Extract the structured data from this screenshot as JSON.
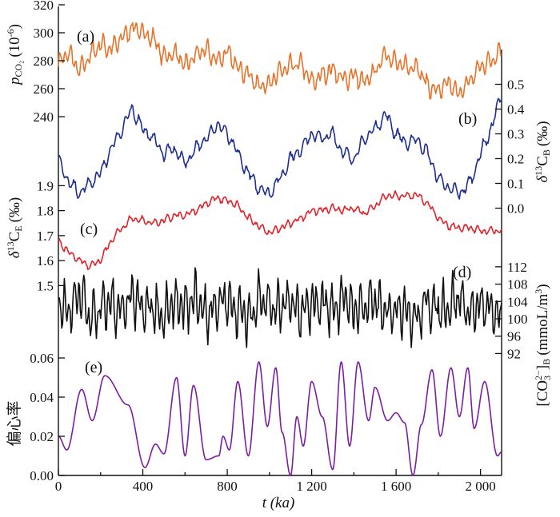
{
  "chart_data": {
    "type": "line",
    "x_axis": {
      "label": "t (ka)",
      "range": [
        0,
        2100
      ],
      "ticks": [
        0,
        400,
        800,
        1200,
        1600,
        2000
      ],
      "tick_labels": [
        "0",
        "400",
        "800",
        "1 200",
        "1 600",
        "2 000"
      ]
    },
    "panels": [
      {
        "label": "(a)",
        "axis_side": "left",
        "ylabel": "pCO2 (10^-6)",
        "ylabel_main": "p",
        "ylabel_sub": "CO₂",
        "ylabel_rest": "(10",
        "ylabel_sup": "-6",
        "ylabel_close": ")",
        "ylim": [
          232,
          320
        ],
        "ticks": [
          240,
          260,
          280,
          300,
          320
        ],
        "color": "#E8732A",
        "x": [
          0,
          50,
          100,
          150,
          200,
          250,
          300,
          350,
          400,
          450,
          500,
          550,
          600,
          650,
          700,
          750,
          800,
          850,
          900,
          950,
          1000,
          1050,
          1100,
          1150,
          1200,
          1250,
          1300,
          1350,
          1400,
          1450,
          1500,
          1550,
          1600,
          1650,
          1700,
          1750,
          1800,
          1850,
          1900,
          1950,
          2000,
          2050,
          2100
        ],
        "y": [
          278,
          286,
          272,
          284,
          292,
          288,
          296,
          304,
          300,
          296,
          282,
          286,
          276,
          284,
          288,
          280,
          286,
          276,
          270,
          262,
          264,
          272,
          276,
          278,
          264,
          270,
          274,
          266,
          270,
          264,
          272,
          286,
          278,
          276,
          276,
          262,
          258,
          264,
          256,
          266,
          276,
          280,
          288
        ]
      },
      {
        "label": "(b)",
        "axis_side": "right",
        "ylabel": "δ13CB (‰)",
        "ylabel_delta": "δ",
        "ylabel_sup": "13",
        "ylabel_main": "C",
        "ylabel_sub": "B",
        "ylabel_unit": "(‰)",
        "ylim": [
          -0.05,
          0.55
        ],
        "ticks": [
          0.0,
          0.1,
          0.2,
          0.3,
          0.4,
          0.5
        ],
        "tick_labels": [
          "0.0",
          "0.1",
          "0.2",
          "0.3",
          "0.4",
          "0.5"
        ],
        "color": "#1E2F8F",
        "x": [
          0,
          50,
          100,
          150,
          200,
          250,
          300,
          350,
          400,
          450,
          500,
          550,
          600,
          650,
          700,
          750,
          800,
          850,
          900,
          950,
          1000,
          1050,
          1100,
          1150,
          1200,
          1250,
          1300,
          1350,
          1400,
          1450,
          1500,
          1550,
          1600,
          1650,
          1700,
          1750,
          1800,
          1850,
          1900,
          1950,
          2000,
          2050,
          2100
        ],
        "y": [
          0.2,
          0.1,
          0.06,
          0.1,
          0.14,
          0.24,
          0.32,
          0.4,
          0.32,
          0.28,
          0.22,
          0.24,
          0.18,
          0.24,
          0.28,
          0.34,
          0.3,
          0.22,
          0.14,
          0.08,
          0.06,
          0.12,
          0.2,
          0.24,
          0.3,
          0.28,
          0.3,
          0.22,
          0.2,
          0.28,
          0.32,
          0.38,
          0.3,
          0.26,
          0.28,
          0.22,
          0.12,
          0.08,
          0.06,
          0.1,
          0.22,
          0.32,
          0.46
        ]
      },
      {
        "label": "(c)",
        "axis_side": "left",
        "ylabel": "δ13CE (‰)",
        "ylabel_delta": "δ",
        "ylabel_sup": "13",
        "ylabel_main": "C",
        "ylabel_sub": "E",
        "ylabel_unit": "(‰)",
        "ylim": [
          1.45,
          1.93
        ],
        "ticks": [
          1.5,
          1.6,
          1.7,
          1.8,
          1.9
        ],
        "tick_labels": [
          "1.5",
          "1.6",
          "1.7",
          "1.8",
          "1.9"
        ],
        "color": "#E0242B",
        "x": [
          0,
          50,
          100,
          150,
          200,
          250,
          300,
          350,
          400,
          450,
          500,
          550,
          600,
          650,
          700,
          750,
          800,
          850,
          900,
          950,
          1000,
          1050,
          1100,
          1150,
          1200,
          1250,
          1300,
          1350,
          1400,
          1450,
          1500,
          1550,
          1600,
          1650,
          1700,
          1750,
          1800,
          1850,
          1900,
          1950,
          2000,
          2050,
          2100
        ],
        "y": [
          1.68,
          1.63,
          1.6,
          1.58,
          1.6,
          1.68,
          1.73,
          1.77,
          1.76,
          1.75,
          1.76,
          1.78,
          1.78,
          1.8,
          1.83,
          1.85,
          1.84,
          1.82,
          1.77,
          1.74,
          1.71,
          1.73,
          1.75,
          1.77,
          1.8,
          1.8,
          1.81,
          1.8,
          1.81,
          1.79,
          1.82,
          1.86,
          1.86,
          1.86,
          1.86,
          1.83,
          1.77,
          1.74,
          1.73,
          1.73,
          1.72,
          1.72,
          1.72
        ]
      },
      {
        "label": "(d)",
        "axis_side": "right",
        "ylabel": "[CO3 2-]B (mmoL/m3)",
        "ylabel_open": "[CO",
        "ylabel_co_sub": "3",
        "ylabel_co_sup": "2−",
        "ylabel_close": "]",
        "ylabel_sub": "B",
        "ylabel_unit": "(mmoL/m",
        "ylabel_unit_sup": "3",
        "ylabel_unit_close": ")",
        "ylim": [
          86,
          114
        ],
        "ticks": [
          92,
          96,
          100,
          104,
          108,
          112
        ],
        "color": "#111111",
        "x": [
          0,
          50,
          100,
          150,
          200,
          250,
          300,
          350,
          400,
          450,
          500,
          550,
          600,
          650,
          700,
          750,
          800,
          850,
          900,
          950,
          1000,
          1050,
          1100,
          1150,
          1200,
          1250,
          1300,
          1350,
          1400,
          1450,
          1500,
          1550,
          1600,
          1650,
          1700,
          1750,
          1800,
          1850,
          1900,
          1950,
          2000,
          2050,
          2100
        ],
        "y": [
          104,
          101,
          106,
          100,
          102,
          104,
          101,
          105,
          102,
          103,
          100,
          104,
          102,
          105,
          101,
          103,
          104,
          102,
          100,
          105,
          103,
          102,
          104,
          101,
          103,
          104,
          102,
          105,
          102,
          103,
          104,
          101,
          103,
          102,
          100,
          104,
          102,
          103,
          105,
          101,
          103,
          102,
          100
        ]
      },
      {
        "label": "(e)",
        "axis_side": "left",
        "ylabel": "偏心率",
        "ylim": [
          0.0,
          0.06
        ],
        "ticks": [
          0.0,
          0.02,
          0.04,
          0.06
        ],
        "tick_labels": [
          "0.00",
          "0.02",
          "0.04",
          "0.06"
        ],
        "color": "#7B1FA2",
        "peaks_x": [
          0,
          40,
          110,
          160,
          220,
          330,
          410,
          460,
          500,
          560,
          600,
          640,
          700,
          760,
          780,
          810,
          850,
          900,
          950,
          990,
          1030,
          1060,
          1100,
          1130,
          1160,
          1200,
          1250,
          1300,
          1340,
          1380,
          1420,
          1470,
          1500,
          1560,
          1600,
          1640,
          1680,
          1720,
          1770,
          1810,
          1860,
          1900,
          1940,
          1970,
          2020,
          2080,
          2100
        ],
        "peaks_y": [
          0.02,
          0.013,
          0.044,
          0.028,
          0.051,
          0.036,
          0.004,
          0.016,
          0.011,
          0.05,
          0.01,
          0.046,
          0.008,
          0.01,
          0.02,
          0.013,
          0.048,
          0.01,
          0.058,
          0.025,
          0.055,
          0.022,
          0.0,
          0.03,
          0.015,
          0.048,
          0.03,
          0.003,
          0.058,
          0.015,
          0.058,
          0.028,
          0.045,
          0.028,
          0.032,
          0.027,
          0.0,
          0.026,
          0.054,
          0.02,
          0.055,
          0.03,
          0.055,
          0.024,
          0.048,
          0.01,
          0.012
        ]
      }
    ]
  }
}
